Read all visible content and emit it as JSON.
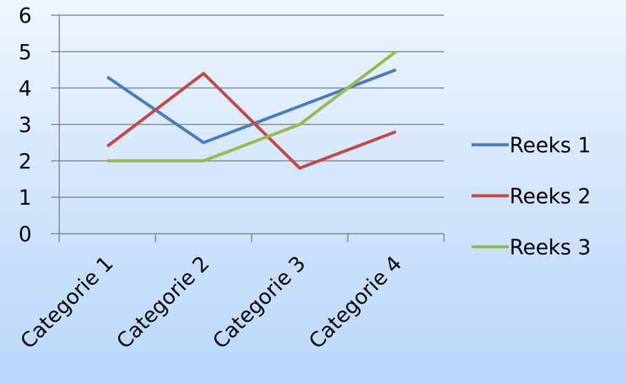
{
  "chart_data": {
    "type": "line",
    "categories": [
      "Categorie 1",
      "Categorie 2",
      "Categorie 3",
      "Categorie 4"
    ],
    "series": [
      {
        "name": "Reeks 1",
        "values": [
          4.3,
          2.5,
          3.5,
          4.5
        ],
        "color": "#4a7ebb"
      },
      {
        "name": "Reeks 2",
        "values": [
          2.4,
          4.4,
          1.8,
          2.8
        ],
        "color": "#be4b48"
      },
      {
        "name": "Reeks 3",
        "values": [
          2.0,
          2.0,
          3.0,
          5.0
        ],
        "color": "#98b954"
      }
    ],
    "title": "",
    "xlabel": "",
    "ylabel": "",
    "ylim": [
      0,
      6
    ],
    "yticks": [
      "0",
      "1",
      "2",
      "3",
      "4",
      "5",
      "6"
    ],
    "grid": true,
    "legend_position": "right",
    "colors": {
      "gridline": "#7f7f7f",
      "axis": "#7f7f7f"
    }
  }
}
